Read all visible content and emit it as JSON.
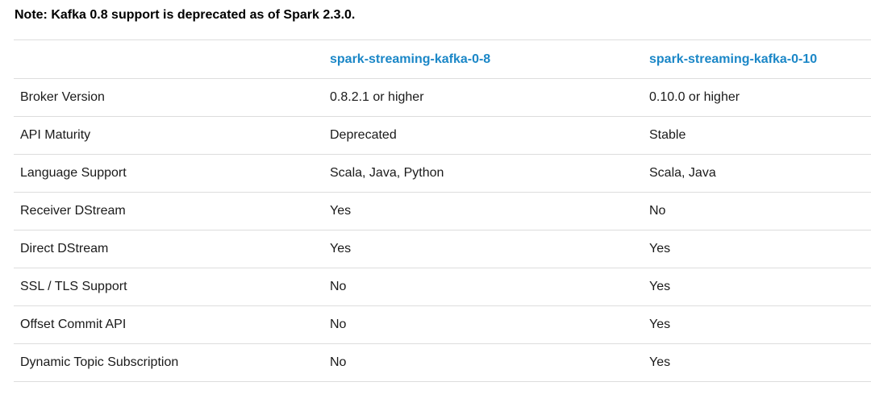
{
  "note": "Note: Kafka 0.8 support is deprecated as of Spark 2.3.0.",
  "colors": {
    "link_blue": "#1b87c7",
    "body_text": "#1a1a1a",
    "note_text": "#000000",
    "row_border": "#dddddd",
    "background": "#ffffff"
  },
  "table": {
    "headers": {
      "label": "",
      "v8": "spark-streaming-kafka-0-8",
      "v10": "spark-streaming-kafka-0-10"
    },
    "rows": [
      {
        "label": "Broker Version",
        "v8": "0.8.2.1 or higher",
        "v10": "0.10.0 or higher"
      },
      {
        "label": "API Maturity",
        "v8": "Deprecated",
        "v10": "Stable"
      },
      {
        "label": "Language Support",
        "v8": "Scala, Java, Python",
        "v10": "Scala, Java"
      },
      {
        "label": "Receiver DStream",
        "v8": "Yes",
        "v10": "No"
      },
      {
        "label": "Direct DStream",
        "v8": "Yes",
        "v10": "Yes"
      },
      {
        "label": "SSL / TLS Support",
        "v8": "No",
        "v10": "Yes"
      },
      {
        "label": "Offset Commit API",
        "v8": "No",
        "v10": "Yes"
      },
      {
        "label": "Dynamic Topic Subscription",
        "v8": "No",
        "v10": "Yes"
      }
    ]
  }
}
